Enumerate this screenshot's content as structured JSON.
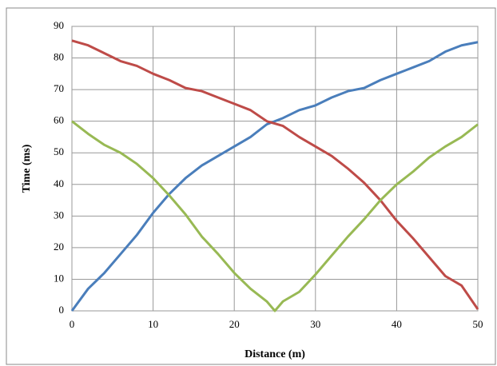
{
  "chart_data": {
    "type": "line",
    "x_label": "Distance (m)",
    "y_label": "Time (ms)",
    "xlim": [
      0,
      50
    ],
    "xticks": [
      0,
      10,
      20,
      30,
      40,
      50
    ],
    "ylim": [
      0,
      90
    ],
    "yticks": [
      0,
      10,
      20,
      30,
      40,
      50,
      60,
      70,
      80,
      90
    ],
    "grid": true,
    "series": [
      {
        "color": "#4a7ebb",
        "x": [
          0,
          2,
          4,
          6,
          8,
          10,
          12,
          14,
          16,
          18,
          20,
          22,
          24,
          26,
          28,
          30,
          32,
          34,
          36,
          38,
          40,
          42,
          44,
          46,
          48,
          50
        ],
        "values": [
          0,
          7,
          12,
          18,
          24,
          31,
          37,
          42,
          46,
          49,
          52,
          55,
          59,
          61,
          63.5,
          65,
          67.5,
          69.5,
          70.5,
          73,
          75,
          77,
          79,
          82,
          84,
          85
        ]
      },
      {
        "color": "#be4b48",
        "x": [
          0,
          2,
          4,
          6,
          8,
          10,
          12,
          14,
          16,
          18,
          20,
          22,
          24,
          26,
          28,
          30,
          32,
          34,
          36,
          38,
          40,
          42,
          44,
          46,
          48,
          50
        ],
        "values": [
          85.5,
          84,
          81.5,
          79,
          77.5,
          75,
          73,
          70.5,
          69.5,
          67.5,
          65.5,
          63.5,
          60,
          58.5,
          55,
          52,
          49,
          45,
          40.5,
          35,
          28.5,
          23,
          17,
          11,
          8,
          0.5
        ]
      },
      {
        "color": "#98b954",
        "x": [
          0,
          2,
          4,
          6,
          8,
          10,
          12,
          14,
          16,
          18,
          20,
          22,
          24,
          25,
          26,
          28,
          30,
          32,
          34,
          36,
          38,
          40,
          42,
          44,
          46,
          48,
          50
        ],
        "values": [
          60,
          56,
          52.5,
          50,
          46.5,
          42,
          36.5,
          30.5,
          23.5,
          18,
          12,
          7,
          3,
          0,
          3,
          6,
          11.5,
          17.5,
          23.5,
          29,
          35,
          40,
          44,
          48.5,
          52,
          55,
          59
        ]
      }
    ]
  }
}
